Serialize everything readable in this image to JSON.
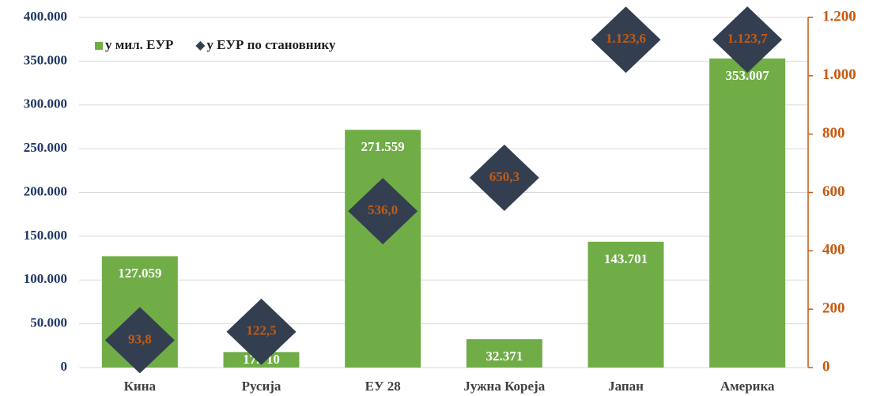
{
  "chart_data": {
    "type": "bar",
    "categories": [
      "Кина",
      "Русија",
      "ЕУ 28",
      "Јужна Кореја",
      "Јапан",
      "Америка"
    ],
    "series": [
      {
        "name": "у мил. ЕУР",
        "color": "#70ad47",
        "type": "bar",
        "values": [
          127059,
          17710,
          271559,
          32371,
          143701,
          353007
        ],
        "value_labels": [
          "127.059",
          "17.710",
          "271.559",
          "32.371",
          "143.701",
          "353.007"
        ]
      },
      {
        "name": "у ЕУР по становнику",
        "color": "#333f50",
        "type": "scatter",
        "marker": "diamond",
        "axis": "y2",
        "values": [
          93.8,
          122.5,
          536.0,
          650.3,
          1123.6,
          1123.7
        ],
        "value_labels": [
          "93,8",
          "122,5",
          "536,0",
          "650,3",
          "1.123,6",
          "1.123,7"
        ]
      }
    ],
    "ylim": [
      0,
      400000
    ],
    "yticks": [
      0,
      {
        "value": 50000,
        "label": "50.000"
      },
      {
        "value": 100000,
        "label": "100.000"
      },
      {
        "value": 150000,
        "label": "150.000"
      },
      {
        "value": 200000,
        "label": "200.000"
      },
      {
        "value": 250000,
        "label": "250.000"
      },
      {
        "value": 300000,
        "label": "300.000"
      },
      {
        "value": 350000,
        "label": "350.000"
      },
      {
        "value": 400000,
        "label": "400.000"
      }
    ],
    "y2lim": [
      0,
      1200
    ],
    "y2ticks": [
      0,
      200,
      400,
      600,
      800,
      {
        "value": 1000,
        "label": "1.000"
      },
      {
        "value": 1200,
        "label": "1.200"
      }
    ],
    "grid": true,
    "legend": "upper left"
  }
}
